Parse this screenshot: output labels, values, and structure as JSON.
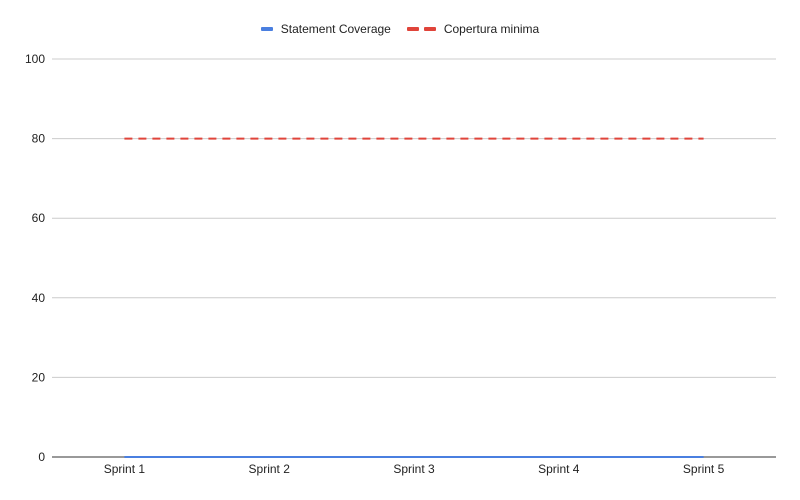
{
  "chart_data": {
    "type": "line",
    "title": "",
    "xlabel": "",
    "ylabel": "",
    "categories": [
      "Sprint 1",
      "Sprint 2",
      "Sprint 3",
      "Sprint 4",
      "Sprint 5"
    ],
    "series": [
      {
        "name": "Statement Coverage",
        "values": [
          0,
          0,
          0,
          0,
          0
        ],
        "color": "#4a7fe0",
        "line_style": "solid"
      },
      {
        "name": "Copertura minima",
        "values": [
          80,
          80,
          80,
          80,
          80
        ],
        "color": "#e0443a",
        "line_style": "dashed"
      }
    ],
    "ylim": [
      0,
      100
    ],
    "yticks": [
      0,
      20,
      40,
      60,
      80,
      100
    ],
    "grid": true,
    "legend_position": "top-center"
  }
}
